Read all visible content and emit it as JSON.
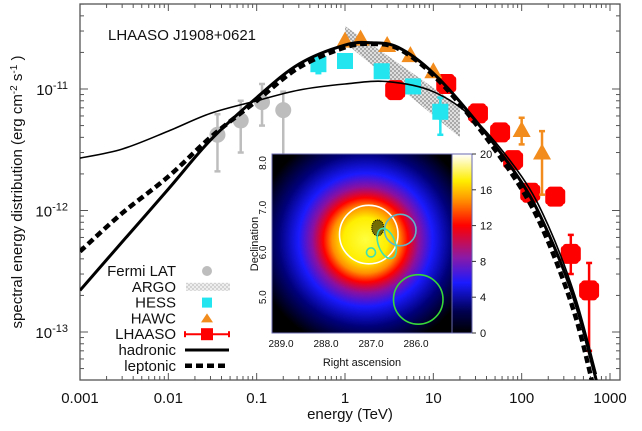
{
  "chart_data": {
    "type": "scatter",
    "title": "LHAASO J1908+0621",
    "xlabel": "energy (TeV)",
    "ylabel": "spectral energy distribution (erg cm^-2 s^-1)",
    "xscale": "log",
    "yscale": "log",
    "xlim": [
      0.001,
      1000
    ],
    "ylim": [
      3e-14,
      5e-11
    ],
    "x_ticks": [
      {
        "value": 0.001,
        "label": "0.001"
      },
      {
        "value": 0.01,
        "label": "0.01"
      },
      {
        "value": 0.1,
        "label": "0.1"
      },
      {
        "value": 1,
        "label": "1"
      },
      {
        "value": 10,
        "label": "10"
      },
      {
        "value": 100,
        "label": "100"
      },
      {
        "value": 1000,
        "label": "1000"
      }
    ],
    "y_ticks": [
      {
        "value": 1e-11,
        "base": "10",
        "exp": "-11"
      },
      {
        "value": 1e-12,
        "base": "10",
        "exp": "-12"
      },
      {
        "value": 1e-13,
        "base": "10",
        "exp": "-13"
      }
    ],
    "legend_position": "bottom-left",
    "series": [
      {
        "name": "Fermi LAT",
        "marker": "circle",
        "color": "#bdbdbd",
        "points": [
          {
            "x": 0.036,
            "y": 4.2e-12,
            "ylo": 2.1e-12,
            "yhi": 6.2e-12
          },
          {
            "x": 0.066,
            "y": 5.5e-12,
            "ylo": 3e-12,
            "yhi": 8e-12
          },
          {
            "x": 0.115,
            "y": 7.8e-12,
            "ylo": 5e-12,
            "yhi": 1.1e-11
          },
          {
            "x": 0.2,
            "y": 6.7e-12,
            "ylo": 2.8e-12,
            "yhi": 9.5e-12
          }
        ]
      },
      {
        "name": "ARGO",
        "marker": "band",
        "color": "#9e9e9e",
        "band": {
          "x": [
            1.0,
            20.0
          ],
          "upper": [
            3.3e-11,
            7.2e-12
          ],
          "lower": [
            2.4e-11,
            4e-12
          ]
        }
      },
      {
        "name": "HESS",
        "marker": "square",
        "color": "#22e5f0",
        "points": [
          {
            "x": 0.5,
            "y": 1.6e-11,
            "ylo": 1.35e-11,
            "yhi": 1.9e-11
          },
          {
            "x": 1.0,
            "y": 1.7e-11
          },
          {
            "x": 2.6,
            "y": 1.4e-11
          },
          {
            "x": 5.9,
            "y": 1.05e-11,
            "ylo": 9.5e-12,
            "yhi": 1.15e-11
          },
          {
            "x": 12.0,
            "y": 6.5e-12,
            "ylo": 4.2e-12,
            "yhi": 8.5e-12
          }
        ]
      },
      {
        "name": "HAWC",
        "marker": "triangle",
        "color": "#f28c1c",
        "points": [
          {
            "x": 1.0,
            "y": 2.5e-11
          },
          {
            "x": 1.5,
            "y": 2.6e-11
          },
          {
            "x": 3.0,
            "y": 2.3e-11
          },
          {
            "x": 5.5,
            "y": 1.9e-11
          },
          {
            "x": 10.0,
            "y": 1.4e-11
          },
          {
            "x": 100.0,
            "y": 4.6e-12,
            "ylo": 3.5e-12,
            "yhi": 5.8e-12
          },
          {
            "x": 170.0,
            "y": 3e-12,
            "ylo": 1.35e-12,
            "yhi": 4.5e-12
          }
        ]
      },
      {
        "name": "LHAASO",
        "marker": "square-errorbar",
        "color": "#ff0000",
        "points": [
          {
            "x": 3.7,
            "y": 9.8e-12
          },
          {
            "x": 14.0,
            "y": 1.1e-11
          },
          {
            "x": 32.0,
            "y": 6.3e-12
          },
          {
            "x": 57.0,
            "y": 4.4e-12
          },
          {
            "x": 80.0,
            "y": 2.6e-12
          },
          {
            "x": 125.0,
            "y": 1.4e-12
          },
          {
            "x": 240.0,
            "y": 1.3e-12
          },
          {
            "x": 360.0,
            "y": 4.4e-13,
            "ylo": 3e-13,
            "yhi": 6.3e-13
          },
          {
            "x": 580.0,
            "y": 2.2e-13,
            "ylo": 7e-14,
            "yhi": 3.7e-13
          }
        ]
      },
      {
        "name": "hadronic",
        "marker": "line",
        "color": "#000000",
        "curves": [
          {
            "label": "thick",
            "x": [
              0.001,
              0.003,
              0.01,
              0.03,
              0.1,
              0.3,
              1,
              2,
              4,
              10,
              30,
              100,
              200,
              400,
              700
            ],
            "y": [
              2.2e-13,
              5.5e-13,
              1.5e-12,
              3.8e-12,
              8.5e-12,
              1.6e-11,
              2.3e-11,
              2.4e-11,
              2.2e-11,
              1.35e-11,
              5.5e-12,
              1.7e-12,
              6.5e-13,
              1.8e-13,
              4e-14
            ]
          },
          {
            "label": "thin",
            "x": [
              0.001,
              0.003,
              0.01,
              0.03,
              0.1,
              0.3,
              1,
              3,
              10,
              30,
              100,
              200,
              400,
              700
            ],
            "y": [
              2.7e-12,
              3.2e-12,
              4.5e-12,
              6.3e-12,
              8e-12,
              9.8e-12,
              1.1e-11,
              1.15e-11,
              9.5e-12,
              5.5e-12,
              1.9e-12,
              7.5e-13,
              2e-13,
              4.5e-14
            ]
          }
        ]
      },
      {
        "name": "leptonic",
        "marker": "dashed-line",
        "color": "#000000",
        "x": [
          0.001,
          0.003,
          0.01,
          0.03,
          0.1,
          0.3,
          1,
          2,
          4,
          10,
          30,
          100,
          200,
          400,
          650
        ],
        "y": [
          4.6e-13,
          9.5e-13,
          1.9e-12,
          4e-12,
          8e-12,
          1.5e-11,
          2.2e-11,
          2.35e-11,
          2.15e-11,
          1.3e-11,
          5.2e-12,
          1.5e-12,
          5.5e-13,
          1.4e-13,
          3.5e-14
        ]
      }
    ],
    "legend": [
      {
        "label": "Fermi LAT",
        "symbol": "circle"
      },
      {
        "label": "ARGO",
        "symbol": "band"
      },
      {
        "label": "HESS",
        "symbol": "square"
      },
      {
        "label": "HAWC",
        "symbol": "triangle"
      },
      {
        "label": "LHAASO",
        "symbol": "square-errorbar"
      },
      {
        "label": "hadronic",
        "symbol": "line"
      },
      {
        "label": "leptonic",
        "symbol": "dashed-line"
      }
    ],
    "inset": {
      "type": "heatmap",
      "xlabel": "Right ascension",
      "ylabel": "Declination",
      "x_ticks": [
        "289.0",
        "288.0",
        "287.0",
        "286.0"
      ],
      "y_ticks": [
        "5.0",
        "6.0",
        "7.0",
        "8.0"
      ],
      "xlim": [
        289.2,
        285.2
      ],
      "ylim": [
        4.2,
        8.2
      ],
      "colorbar": {
        "min": 0,
        "max": 20,
        "ticks": [
          "0",
          "4",
          "8",
          "12",
          "16",
          "20"
        ]
      },
      "peak": {
        "ra": 287.1,
        "dec": 6.3
      },
      "circles": [
        {
          "color": "#ffffff",
          "ra": 287.05,
          "dec": 6.4,
          "r": 0.65
        },
        {
          "color": "#5fb6c9",
          "ra": 286.35,
          "dec": 6.5,
          "r": 0.35
        },
        {
          "color": "#40e0b0",
          "ra": 286.65,
          "dec": 6.2,
          "r": 0.25
        },
        {
          "color": "#40e0b0",
          "ra": 287.0,
          "dec": 6.0,
          "r": 0.1
        },
        {
          "color": "#38d838",
          "ra": 285.95,
          "dec": 4.95,
          "r": 0.55
        }
      ]
    }
  }
}
